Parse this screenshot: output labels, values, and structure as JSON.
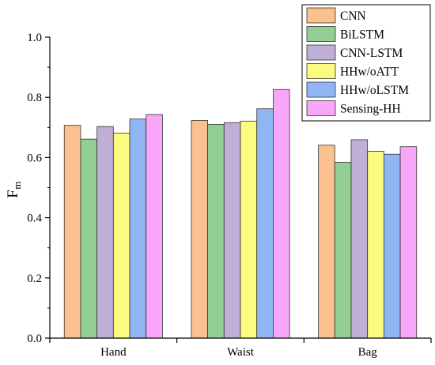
{
  "chart_data": {
    "type": "bar",
    "title": "",
    "xlabel": "",
    "ylabel": "F",
    "ylabel_subscript": "m",
    "categories": [
      "Hand",
      "Waist",
      "Bag"
    ],
    "ylim": [
      0.0,
      1.0
    ],
    "yticks": [
      0.0,
      0.2,
      0.4,
      0.6,
      0.8,
      1.0
    ],
    "ytick_labels": [
      "0.0",
      "0.2",
      "0.4",
      "0.6",
      "0.8",
      "1.0"
    ],
    "grid": false,
    "legend_position": "top-right",
    "series": [
      {
        "name": "CNN",
        "color": "#FAC08F",
        "values": [
          0.707,
          0.723,
          0.641
        ]
      },
      {
        "name": "BiLSTM",
        "color": "#93CF93",
        "values": [
          0.661,
          0.71,
          0.584
        ]
      },
      {
        "name": "CNN-LSTM",
        "color": "#BFAED6",
        "values": [
          0.703,
          0.716,
          0.659
        ]
      },
      {
        "name": "HHw/oATT",
        "color": "#FBFB7F",
        "values": [
          0.681,
          0.721,
          0.621
        ]
      },
      {
        "name": "HHw/oLSTM",
        "color": "#8FB5F3",
        "values": [
          0.728,
          0.762,
          0.611
        ]
      },
      {
        "name": "Sensing-HH",
        "color": "#F8A6F8",
        "values": [
          0.743,
          0.826,
          0.636
        ]
      }
    ]
  }
}
